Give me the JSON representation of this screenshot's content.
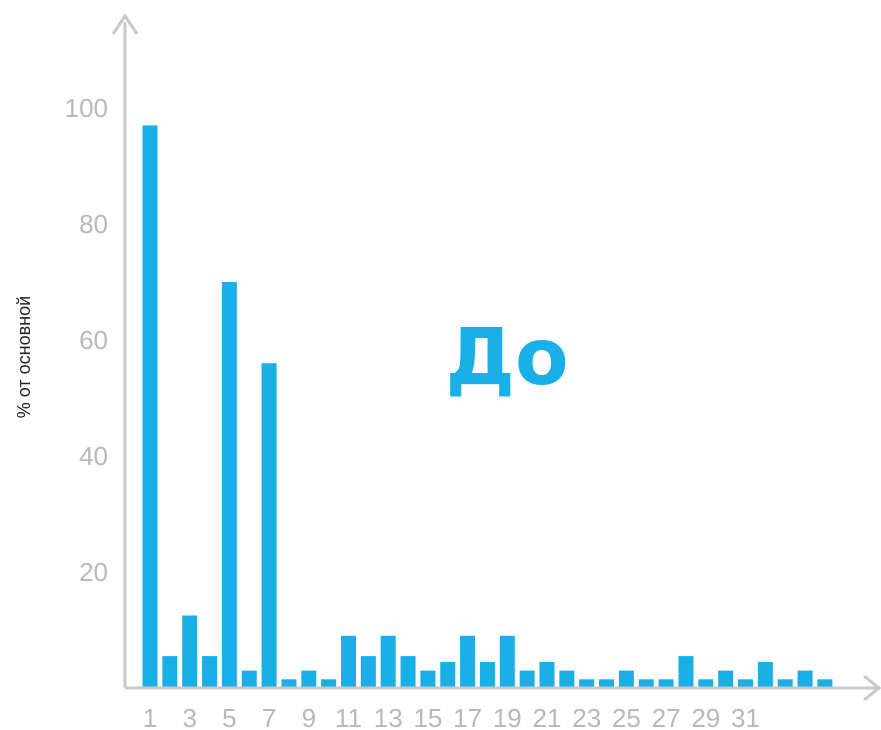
{
  "chart_data": {
    "type": "bar",
    "title": "",
    "xlabel": "",
    "ylabel": "% от основной",
    "annotation": "До",
    "colors": {
      "bar": "#1aafe6",
      "axis": "#c8c8c8",
      "tick_text": "#b9b9b9",
      "annotation": "#1aafe6"
    },
    "ylim": [
      0,
      100
    ],
    "grid": false,
    "legend": "none",
    "y_ticks": [
      20,
      40,
      60,
      80,
      100
    ],
    "x_tick_labels": [
      "1",
      "3",
      "5",
      "7",
      "9",
      "11",
      "13",
      "15",
      "17",
      "19",
      "21",
      "23",
      "25",
      "27",
      "29",
      "31"
    ],
    "categories": [
      "1",
      "2",
      "3",
      "4",
      "5",
      "6",
      "7",
      "8",
      "9",
      "10",
      "11",
      "12",
      "13",
      "14",
      "15",
      "16",
      "17",
      "18",
      "19",
      "20",
      "21",
      "22",
      "23",
      "24",
      "25",
      "26",
      "27",
      "28",
      "29",
      "30",
      "31",
      "32",
      "33",
      "34",
      "35"
    ],
    "values": [
      97,
      5.5,
      12.5,
      5.5,
      70,
      3,
      56,
      1.5,
      3,
      1.5,
      9,
      5.5,
      9,
      5.5,
      3,
      4.5,
      9,
      4.5,
      9,
      3,
      4.5,
      3,
      1.5,
      1.5,
      3,
      1.5,
      1.5,
      5.5,
      1.5,
      3,
      1.5,
      4.5,
      1.5,
      3,
      1.5
    ]
  }
}
